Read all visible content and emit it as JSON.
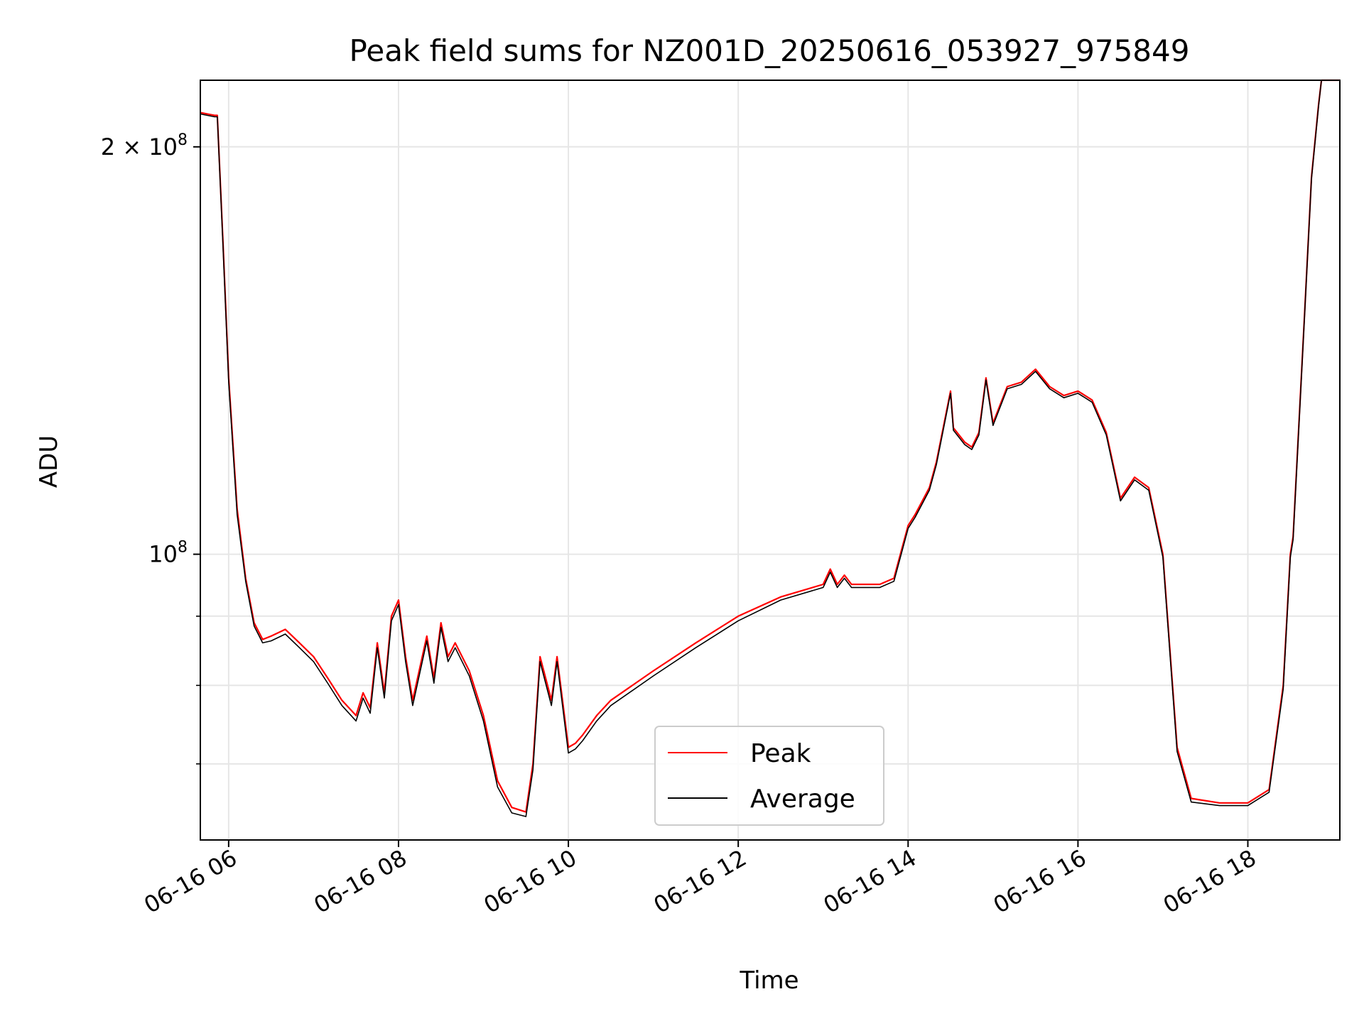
{
  "chart_data": {
    "type": "line",
    "title": "Peak field sums for NZ001D_20250616_053927_975849",
    "xlabel": "Time",
    "ylabel": "ADU",
    "yscale": "log",
    "grid": true,
    "legend_position": "lower center",
    "xlim": [
      "2025-06-16 05:40",
      "2025-06-16 19:05"
    ],
    "ylim": [
      61500000,
      224000000
    ],
    "x_ticks": [
      {
        "value": "2025-06-16 06:00",
        "label": "06-16 06"
      },
      {
        "value": "2025-06-16 08:00",
        "label": "06-16 08"
      },
      {
        "value": "2025-06-16 10:00",
        "label": "06-16 10"
      },
      {
        "value": "2025-06-16 12:00",
        "label": "06-16 12"
      },
      {
        "value": "2025-06-16 14:00",
        "label": "06-16 14"
      },
      {
        "value": "2025-06-16 16:00",
        "label": "06-16 16"
      },
      {
        "value": "2025-06-16 18:00",
        "label": "06-16 18"
      }
    ],
    "y_major_ticks": [
      {
        "value": 100000000,
        "base": "10",
        "exp": "8",
        "coef": ""
      },
      {
        "value": 200000000,
        "base": "10",
        "exp": "8",
        "coef": "2 × "
      }
    ],
    "y_minor_ticks": [
      70000000,
      80000000,
      90000000
    ],
    "series": [
      {
        "name": "Peak",
        "color": "#ff0000",
        "x": [
          "2025-06-16 05:40",
          "2025-06-16 05:50",
          "2025-06-16 05:52",
          "2025-06-16 05:56",
          "2025-06-16 06:00",
          "2025-06-16 06:06",
          "2025-06-16 06:12",
          "2025-06-16 06:18",
          "2025-06-16 06:24",
          "2025-06-16 06:30",
          "2025-06-16 06:40",
          "2025-06-16 06:50",
          "2025-06-16 07:00",
          "2025-06-16 07:10",
          "2025-06-16 07:20",
          "2025-06-16 07:30",
          "2025-06-16 07:35",
          "2025-06-16 07:40",
          "2025-06-16 07:45",
          "2025-06-16 07:50",
          "2025-06-16 07:55",
          "2025-06-16 08:00",
          "2025-06-16 08:05",
          "2025-06-16 08:10",
          "2025-06-16 08:20",
          "2025-06-16 08:25",
          "2025-06-16 08:30",
          "2025-06-16 08:35",
          "2025-06-16 08:40",
          "2025-06-16 08:50",
          "2025-06-16 09:00",
          "2025-06-16 09:10",
          "2025-06-16 09:20",
          "2025-06-16 09:30",
          "2025-06-16 09:35",
          "2025-06-16 09:40",
          "2025-06-16 09:48",
          "2025-06-16 09:52",
          "2025-06-16 10:00",
          "2025-06-16 10:05",
          "2025-06-16 10:10",
          "2025-06-16 10:20",
          "2025-06-16 10:30",
          "2025-06-16 11:00",
          "2025-06-16 11:30",
          "2025-06-16 12:00",
          "2025-06-16 12:30",
          "2025-06-16 13:00",
          "2025-06-16 13:05",
          "2025-06-16 13:10",
          "2025-06-16 13:15",
          "2025-06-16 13:20",
          "2025-06-16 13:40",
          "2025-06-16 13:50",
          "2025-06-16 14:00",
          "2025-06-16 14:05",
          "2025-06-16 14:15",
          "2025-06-16 14:20",
          "2025-06-16 14:30",
          "2025-06-16 14:32",
          "2025-06-16 14:40",
          "2025-06-16 14:45",
          "2025-06-16 14:50",
          "2025-06-16 14:55",
          "2025-06-16 15:00",
          "2025-06-16 15:10",
          "2025-06-16 15:20",
          "2025-06-16 15:30",
          "2025-06-16 15:40",
          "2025-06-16 15:50",
          "2025-06-16 16:00",
          "2025-06-16 16:10",
          "2025-06-16 16:20",
          "2025-06-16 16:30",
          "2025-06-16 16:40",
          "2025-06-16 16:50",
          "2025-06-16 17:00",
          "2025-06-16 17:10",
          "2025-06-16 17:20",
          "2025-06-16 17:40",
          "2025-06-16 18:00",
          "2025-06-16 18:15",
          "2025-06-16 18:25",
          "2025-06-16 18:30",
          "2025-06-16 18:32",
          "2025-06-16 18:40",
          "2025-06-16 18:45",
          "2025-06-16 18:50",
          "2025-06-16 18:52",
          "2025-06-16 19:05"
        ],
        "values": [
          212000000,
          211000000,
          211000000,
          170000000,
          135000000,
          108000000,
          96000000,
          89000000,
          86500000,
          87000000,
          88000000,
          86000000,
          84000000,
          81000000,
          78000000,
          76000000,
          79000000,
          77000000,
          86000000,
          79000000,
          90000000,
          92500000,
          84000000,
          78000000,
          87000000,
          81000000,
          89000000,
          84000000,
          86000000,
          82000000,
          76000000,
          68000000,
          65000000,
          64500000,
          70000000,
          84000000,
          78000000,
          84000000,
          72000000,
          72500000,
          73500000,
          76000000,
          78000000,
          82000000,
          86000000,
          90000000,
          93000000,
          95000000,
          97500000,
          95000000,
          96500000,
          95000000,
          95000000,
          96000000,
          105000000,
          107000000,
          112000000,
          117000000,
          132000000,
          124000000,
          121000000,
          120000000,
          123000000,
          135000000,
          125000000,
          133000000,
          134000000,
          137000000,
          133000000,
          131000000,
          132000000,
          130000000,
          123000000,
          110000000,
          114000000,
          112000000,
          100000000,
          72000000,
          66000000,
          65500000,
          65500000,
          67000000,
          80000000,
          100000000,
          103000000,
          150000000,
          190000000,
          215000000,
          224000000,
          224000000
        ]
      },
      {
        "name": "Average",
        "color": "#000000",
        "x": [
          "2025-06-16 05:40",
          "2025-06-16 05:50",
          "2025-06-16 05:52",
          "2025-06-16 05:56",
          "2025-06-16 06:00",
          "2025-06-16 06:06",
          "2025-06-16 06:12",
          "2025-06-16 06:18",
          "2025-06-16 06:24",
          "2025-06-16 06:30",
          "2025-06-16 06:40",
          "2025-06-16 06:50",
          "2025-06-16 07:00",
          "2025-06-16 07:10",
          "2025-06-16 07:20",
          "2025-06-16 07:30",
          "2025-06-16 07:35",
          "2025-06-16 07:40",
          "2025-06-16 07:45",
          "2025-06-16 07:50",
          "2025-06-16 07:55",
          "2025-06-16 08:00",
          "2025-06-16 08:05",
          "2025-06-16 08:10",
          "2025-06-16 08:20",
          "2025-06-16 08:25",
          "2025-06-16 08:30",
          "2025-06-16 08:35",
          "2025-06-16 08:40",
          "2025-06-16 08:50",
          "2025-06-16 09:00",
          "2025-06-16 09:10",
          "2025-06-16 09:20",
          "2025-06-16 09:30",
          "2025-06-16 09:35",
          "2025-06-16 09:40",
          "2025-06-16 09:48",
          "2025-06-16 09:52",
          "2025-06-16 10:00",
          "2025-06-16 10:05",
          "2025-06-16 10:10",
          "2025-06-16 10:20",
          "2025-06-16 10:30",
          "2025-06-16 11:00",
          "2025-06-16 11:30",
          "2025-06-16 12:00",
          "2025-06-16 12:30",
          "2025-06-16 13:00",
          "2025-06-16 13:05",
          "2025-06-16 13:10",
          "2025-06-16 13:15",
          "2025-06-16 13:20",
          "2025-06-16 13:40",
          "2025-06-16 13:50",
          "2025-06-16 14:00",
          "2025-06-16 14:05",
          "2025-06-16 14:15",
          "2025-06-16 14:20",
          "2025-06-16 14:30",
          "2025-06-16 14:32",
          "2025-06-16 14:40",
          "2025-06-16 14:45",
          "2025-06-16 14:50",
          "2025-06-16 14:55",
          "2025-06-16 15:00",
          "2025-06-16 15:10",
          "2025-06-16 15:20",
          "2025-06-16 15:30",
          "2025-06-16 15:40",
          "2025-06-16 15:50",
          "2025-06-16 16:00",
          "2025-06-16 16:10",
          "2025-06-16 16:20",
          "2025-06-16 16:30",
          "2025-06-16 16:40",
          "2025-06-16 16:50",
          "2025-06-16 17:00",
          "2025-06-16 17:10",
          "2025-06-16 17:20",
          "2025-06-16 17:40",
          "2025-06-16 18:00",
          "2025-06-16 18:15",
          "2025-06-16 18:25",
          "2025-06-16 18:30",
          "2025-06-16 18:32",
          "2025-06-16 18:40",
          "2025-06-16 18:45",
          "2025-06-16 18:50",
          "2025-06-16 18:52",
          "2025-06-16 19:05"
        ],
        "values": [
          211500000,
          210500000,
          210500000,
          169000000,
          134000000,
          107000000,
          95500000,
          88500000,
          86000000,
          86300000,
          87300000,
          85300000,
          83300000,
          80300000,
          77300000,
          75300000,
          78300000,
          76300000,
          85300000,
          78300000,
          89300000,
          91800000,
          83300000,
          77300000,
          86300000,
          80300000,
          88300000,
          83300000,
          85300000,
          81300000,
          75300000,
          67300000,
          64400000,
          64000000,
          69300000,
          83300000,
          77300000,
          83300000,
          71300000,
          71800000,
          72800000,
          75300000,
          77300000,
          81300000,
          85300000,
          89300000,
          92500000,
          94500000,
          97000000,
          94500000,
          96000000,
          94500000,
          94500000,
          95500000,
          104500000,
          106500000,
          111500000,
          116500000,
          131500000,
          123500000,
          120500000,
          119500000,
          122500000,
          134500000,
          124500000,
          132500000,
          133500000,
          136500000,
          132500000,
          130500000,
          131500000,
          129500000,
          122500000,
          109500000,
          113500000,
          111500000,
          99500000,
          71500000,
          65600000,
          65200000,
          65200000,
          66700000,
          79500000,
          99500000,
          102500000,
          149500000,
          189500000,
          214500000,
          224000000,
          224000000
        ]
      }
    ]
  }
}
